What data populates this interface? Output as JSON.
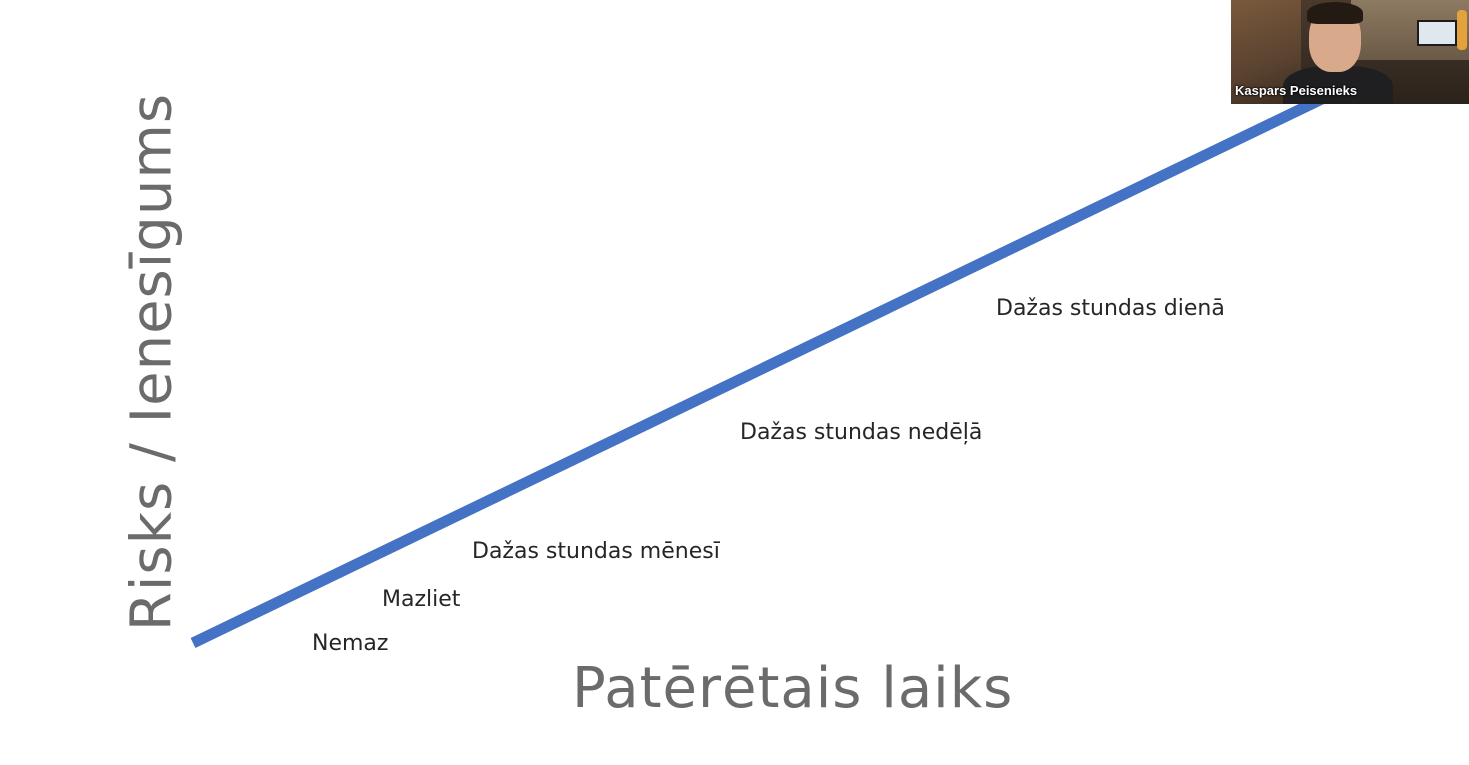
{
  "slide": {
    "y_axis_title": "Risks / Ienesīgums",
    "x_axis_title": "Patērētais laiks",
    "trend_line_color": "#4472C4",
    "levels": [
      "Nemaz",
      "Mazliet",
      "Dažas stundas mēnesī",
      "Dažas stundas nedēļā",
      "Dažas stundas dienā"
    ]
  },
  "video_call": {
    "participant_name": "Kaspars Peisenieks"
  }
}
